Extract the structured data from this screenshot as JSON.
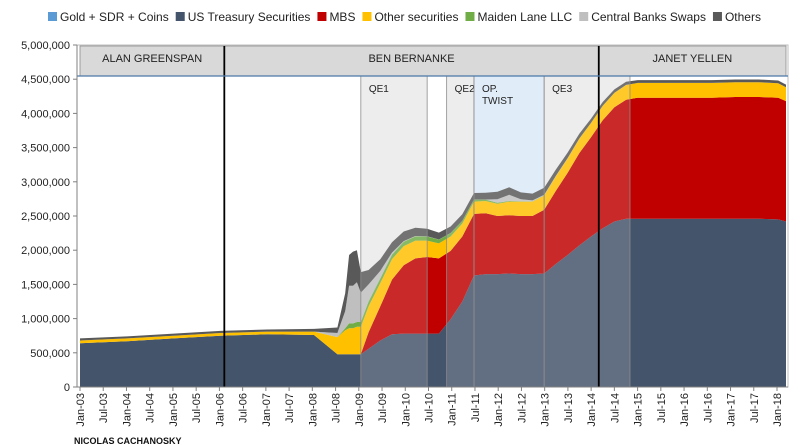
{
  "chart_data": {
    "type": "area",
    "stacked": true,
    "title": "",
    "xlabel": "",
    "ylabel": "",
    "ylim": [
      0,
      5000000
    ],
    "yticks": [
      0,
      500000,
      1000000,
      1500000,
      2000000,
      2500000,
      3000000,
      3500000,
      4000000,
      4500000,
      5000000
    ],
    "ytick_labels": [
      "0",
      "500,000",
      "1,000,000",
      "1,500,000",
      "2,000,000",
      "2,500,000",
      "3,000,000",
      "3,500,000",
      "4,000,000",
      "4,500,000",
      "5,000,000"
    ],
    "x_range": [
      "2003-01",
      "2018-02"
    ],
    "xtick_labels": [
      "Jan-03",
      "Jul-03",
      "Jan-04",
      "Jul-04",
      "Jan-05",
      "Jul-05",
      "Jan-06",
      "Jul-06",
      "Jan-07",
      "Jul-07",
      "Jan-08",
      "Jul-08",
      "Jan-09",
      "Jul-09",
      "Jan-10",
      "Jul-10",
      "Jan-11",
      "Jul-11",
      "Jan-12",
      "Jul-12",
      "Jan-13",
      "Jul-13",
      "Jan-14",
      "Jul-14",
      "Jan-15",
      "Jul-15",
      "Jan-16",
      "Jul-16",
      "Jan-17",
      "Jul-17",
      "Jan-18"
    ],
    "legend_position": "top",
    "grid": false,
    "x": [
      "2003-01",
      "2004-01",
      "2005-01",
      "2006-01",
      "2007-01",
      "2008-01",
      "2008-07",
      "2008-09",
      "2008-10",
      "2008-11",
      "2008-12",
      "2009-01",
      "2009-03",
      "2009-06",
      "2009-09",
      "2009-12",
      "2010-03",
      "2010-06",
      "2010-09",
      "2010-12",
      "2011-03",
      "2011-06",
      "2011-09",
      "2011-12",
      "2012-03",
      "2012-06",
      "2012-09",
      "2012-12",
      "2013-03",
      "2013-06",
      "2013-09",
      "2013-12",
      "2014-03",
      "2014-06",
      "2014-09",
      "2014-12",
      "2015-06",
      "2016-01",
      "2016-07",
      "2017-01",
      "2017-07",
      "2017-12",
      "2018-02"
    ],
    "series": [
      {
        "name": "Gold + SDR + Coins",
        "color": "#5b9bd5",
        "values": [
          20,
          20,
          20,
          20,
          20,
          20,
          20,
          20,
          20,
          20,
          20,
          20,
          20,
          20,
          20,
          20,
          20,
          20,
          20,
          20,
          20,
          20,
          20,
          20,
          20,
          20,
          20,
          20,
          20,
          20,
          20,
          20,
          20,
          20,
          20,
          20,
          20,
          20,
          20,
          20,
          20,
          20,
          20
        ]
      },
      {
        "name": "US Treasury Securities",
        "color": "#44546a",
        "values": [
          640000,
          670000,
          710000,
          750000,
          770000,
          760000,
          480000,
          480000,
          480000,
          480000,
          480000,
          480000,
          560000,
          680000,
          770000,
          780000,
          780000,
          780000,
          780000,
          990000,
          1250000,
          1630000,
          1650000,
          1650000,
          1660000,
          1650000,
          1650000,
          1660000,
          1800000,
          1930000,
          2070000,
          2200000,
          2320000,
          2420000,
          2460000,
          2460000,
          2460000,
          2460000,
          2460000,
          2460000,
          2460000,
          2450000,
          2420000
        ]
      },
      {
        "name": "MBS",
        "color": "#c00000",
        "values": [
          0,
          0,
          0,
          0,
          0,
          0,
          0,
          0,
          0,
          0,
          0,
          0,
          240000,
          500000,
          800000,
          1000000,
          1100000,
          1120000,
          1100000,
          1000000,
          950000,
          900000,
          890000,
          850000,
          850000,
          850000,
          850000,
          930000,
          1070000,
          1200000,
          1350000,
          1450000,
          1580000,
          1670000,
          1740000,
          1770000,
          1770000,
          1770000,
          1770000,
          1780000,
          1780000,
          1780000,
          1760000
        ]
      },
      {
        "name": "Other securities",
        "color": "#ffc000",
        "values": [
          40000,
          40000,
          40000,
          40000,
          40000,
          50000,
          250000,
          350000,
          380000,
          380000,
          400000,
          400000,
          380000,
          340000,
          300000,
          280000,
          260000,
          240000,
          220000,
          210000,
          190000,
          180000,
          180000,
          180000,
          200000,
          210000,
          210000,
          210000,
          210000,
          210000,
          210000,
          210000,
          210000,
          210000,
          215000,
          215000,
          215000,
          215000,
          215000,
          215000,
          215000,
          210000,
          200000
        ]
      },
      {
        "name": "Maiden Lane LLC",
        "color": "#70ad47",
        "values": [
          0,
          0,
          0,
          0,
          0,
          0,
          0,
          30000,
          70000,
          70000,
          70000,
          70000,
          70000,
          68000,
          65000,
          63000,
          62000,
          60000,
          55000,
          50000,
          40000,
          30000,
          20000,
          15000,
          10000,
          5000,
          3000,
          2000,
          1500,
          1200,
          1000,
          800,
          600,
          500,
          400,
          300,
          200,
          100,
          100,
          0,
          0,
          0,
          0
        ]
      },
      {
        "name": "Central Banks Swaps",
        "color": "#bfbfbf",
        "values": [
          0,
          0,
          0,
          0,
          0,
          0,
          60000,
          250000,
          550000,
          550000,
          580000,
          430000,
          250000,
          110000,
          30000,
          10000,
          5000,
          5000,
          2000,
          1000,
          1000,
          1000,
          1000,
          50000,
          90000,
          30000,
          15000,
          10000,
          8000,
          5000,
          2000,
          1000,
          1000,
          1000,
          1000,
          1000,
          1000,
          1000,
          1000,
          1000,
          1000,
          1000,
          1000
        ]
      },
      {
        "name": "Others",
        "color": "#595959",
        "values": [
          30000,
          30000,
          30000,
          30000,
          30000,
          40000,
          80000,
          260000,
          450000,
          500000,
          470000,
          300000,
          210000,
          170000,
          150000,
          140000,
          120000,
          110000,
          100000,
          95000,
          95000,
          95000,
          100000,
          110000,
          110000,
          100000,
          100000,
          100000,
          90000,
          80000,
          70000,
          60000,
          55000,
          50000,
          45000,
          40000,
          40000,
          40000,
          40000,
          40000,
          40000,
          40000,
          40000
        ]
      }
    ],
    "eras": [
      {
        "label": "ALAN GREENSPAN",
        "start": "2003-01",
        "end": "2006-02"
      },
      {
        "label": "BEN BERNANKE",
        "start": "2006-02",
        "end": "2014-02"
      },
      {
        "label": "JANET YELLEN",
        "start": "2014-02",
        "end": "2018-02"
      }
    ],
    "programs": [
      {
        "label": "QE1",
        "start": "2009-01",
        "end": "2010-06",
        "color": "#d9d9d9"
      },
      {
        "label": "QE2",
        "start": "2010-11",
        "end": "2011-06",
        "color": "#d9d9d9"
      },
      {
        "label": "OP.",
        "label2": "TWIST",
        "start": "2011-06",
        "end": "2012-12",
        "color": "#bdd7ee"
      },
      {
        "label": "QE3",
        "start": "2012-12",
        "end": "2014-10",
        "color": "#d9d9d9"
      }
    ],
    "credit": "NICOLAS CACHANOSKY"
  }
}
